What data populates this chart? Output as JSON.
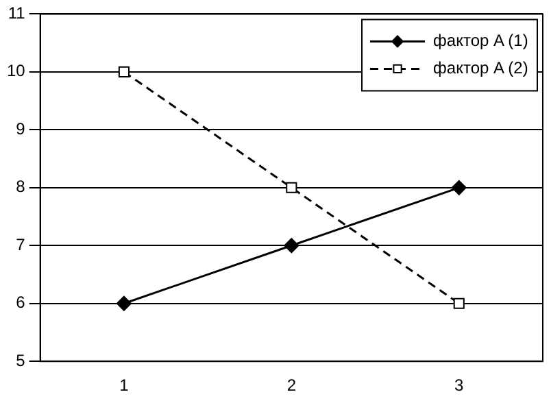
{
  "chart_data": {
    "type": "line",
    "categories": [
      "1",
      "2",
      "3"
    ],
    "series": [
      {
        "name": "фактор A (1)",
        "color": "#000000",
        "values": [
          6,
          7,
          8
        ],
        "marker": "diamond",
        "line_style": "solid"
      },
      {
        "name": "фактор A (2)",
        "color": "#000000",
        "values": [
          10,
          8,
          6
        ],
        "marker": "square",
        "line_style": "dashed"
      }
    ],
    "ylim": [
      5,
      11
    ],
    "yticks": [
      5,
      6,
      7,
      8,
      9,
      10,
      11
    ],
    "grid": "y",
    "legend": "top right"
  }
}
